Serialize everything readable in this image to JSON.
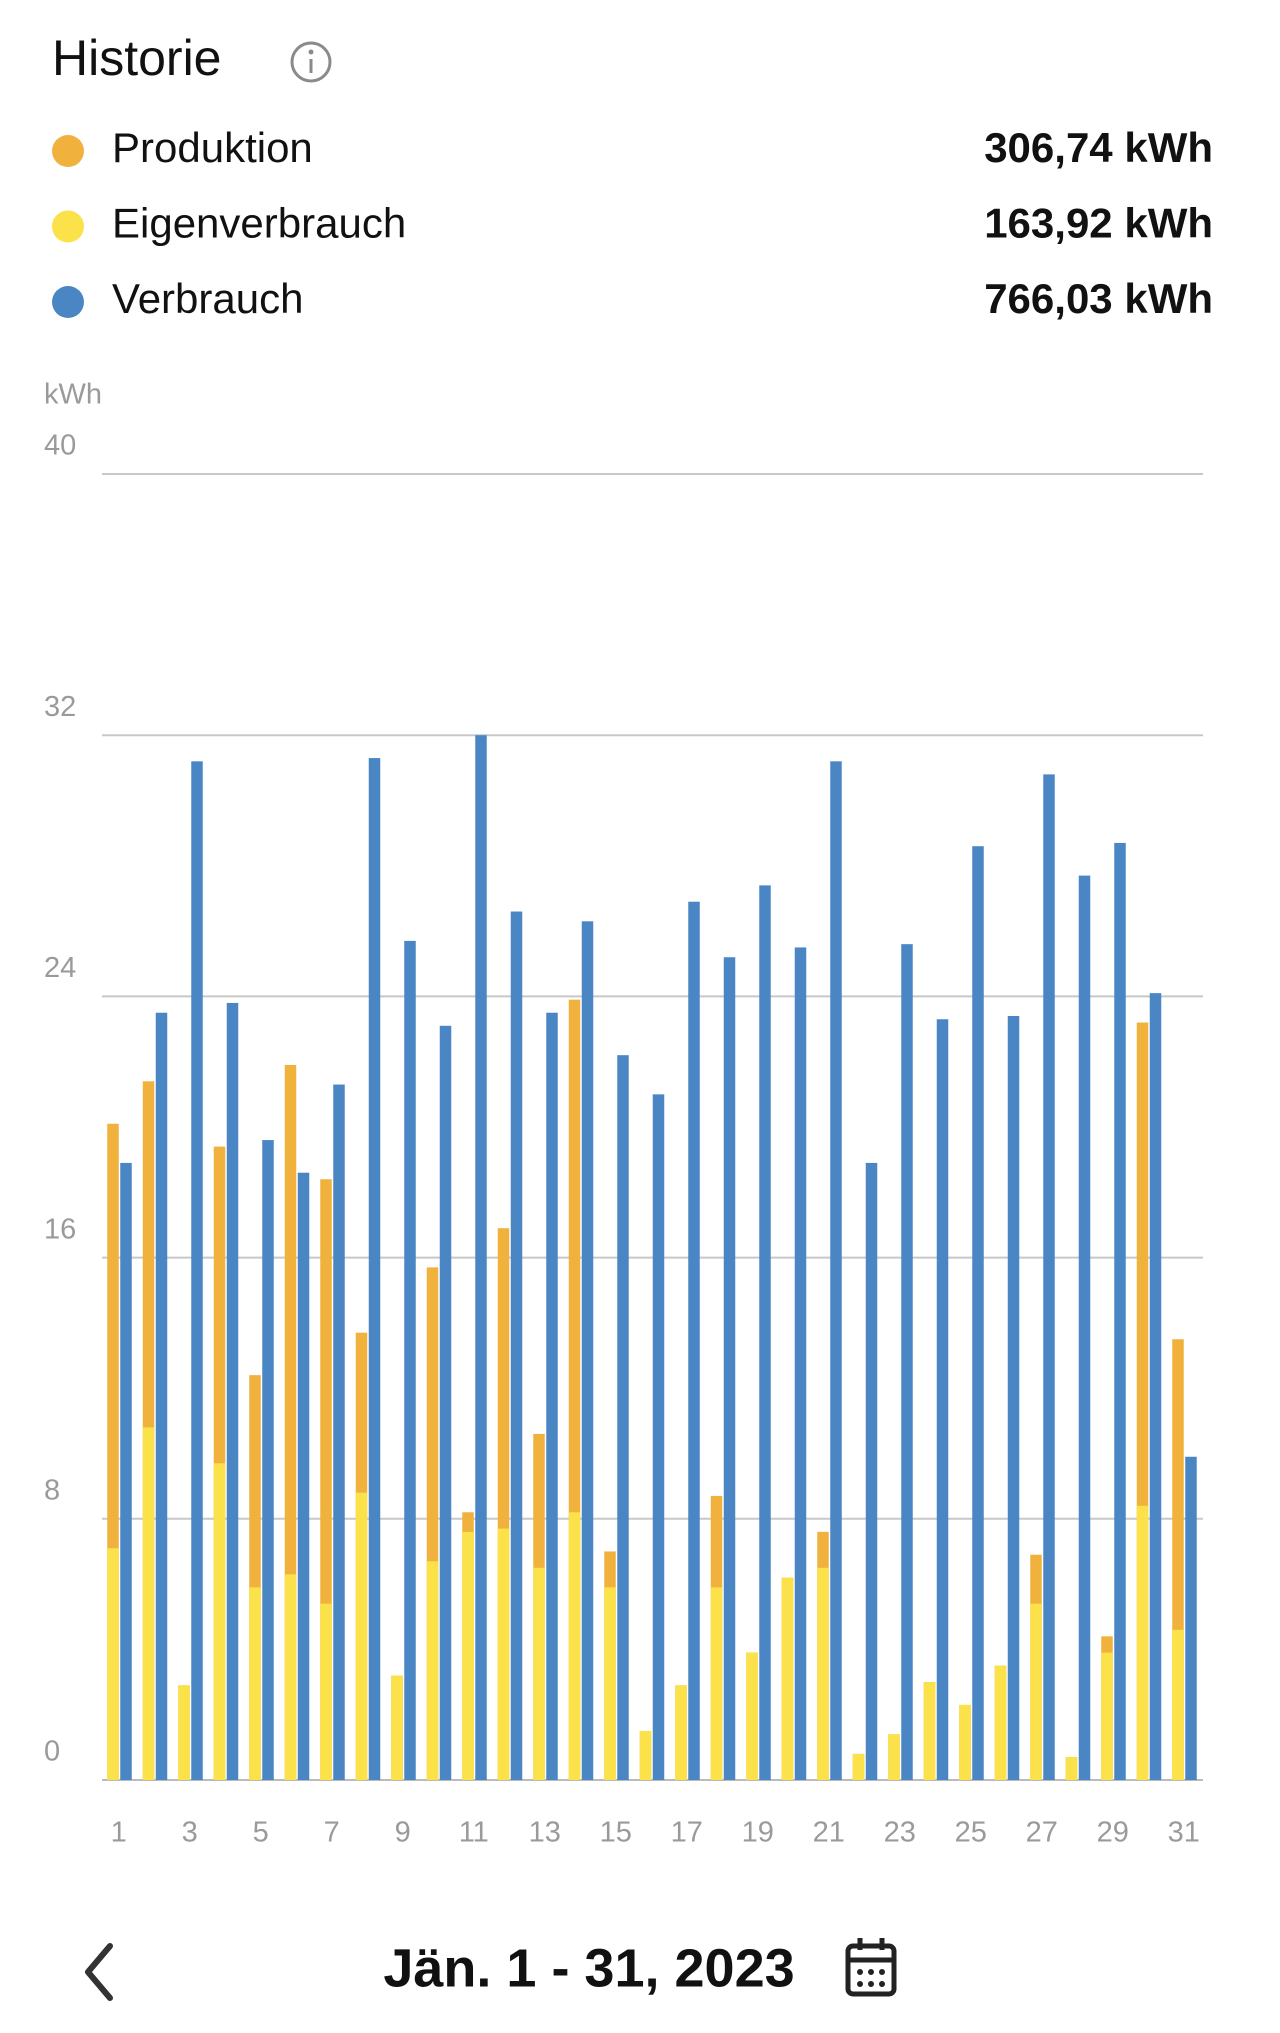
{
  "chart_data": {
    "type": "bar",
    "title": "Historie",
    "y_label": "kWh",
    "footer": "Jän. 1 - 31, 2023",
    "categories": [
      1,
      null,
      3,
      null,
      5,
      null,
      7,
      null,
      9,
      null,
      11,
      null,
      13,
      null,
      15,
      null,
      17,
      null,
      19,
      null,
      21,
      null,
      23,
      null,
      25,
      null,
      27,
      null,
      29,
      null,
      31
    ],
    "series": [
      {
        "name": "Produktion",
        "color": "#f0b23c",
        "total": "306,74 kWh",
        "values": [
          20.1,
          21.4,
          2.9,
          19.4,
          12.4,
          21.9,
          18.4,
          13.7,
          3.2,
          15.7,
          8.2,
          16.9,
          10.6,
          23.9,
          7.0,
          1.5,
          2.9,
          8.7,
          3.9,
          6.2,
          7.6,
          0.8,
          1.4,
          3.0,
          2.3,
          3.5,
          6.9,
          0.7,
          4.4,
          23.2,
          13.5
        ]
      },
      {
        "name": "Eigenverbrauch",
        "color": "#fbe14a",
        "total": "163,92 kWh",
        "values": [
          7.1,
          10.8,
          2.9,
          9.7,
          5.9,
          6.3,
          5.4,
          8.8,
          3.2,
          6.7,
          7.6,
          7.7,
          6.5,
          8.2,
          5.9,
          1.5,
          2.9,
          5.9,
          3.9,
          6.2,
          6.5,
          0.8,
          1.4,
          3.0,
          2.3,
          3.5,
          5.4,
          0.7,
          3.9,
          8.4,
          4.6
        ]
      },
      {
        "name": "Verbrauch",
        "color": "#4a86c4",
        "total": "766,03 kWh",
        "values": [
          18.9,
          23.5,
          31.2,
          23.8,
          19.6,
          18.6,
          21.3,
          31.3,
          25.7,
          23.1,
          32.0,
          26.6,
          23.5,
          26.3,
          22.2,
          21.0,
          26.9,
          25.2,
          27.4,
          25.5,
          31.2,
          18.9,
          25.6,
          23.3,
          28.6,
          23.4,
          30.8,
          27.7,
          28.7,
          24.1,
          9.9
        ]
      }
    ],
    "ylim": [
      0,
      40
    ],
    "yticks": [
      0,
      8,
      16,
      24,
      32,
      40
    ],
    "grid": true
  }
}
